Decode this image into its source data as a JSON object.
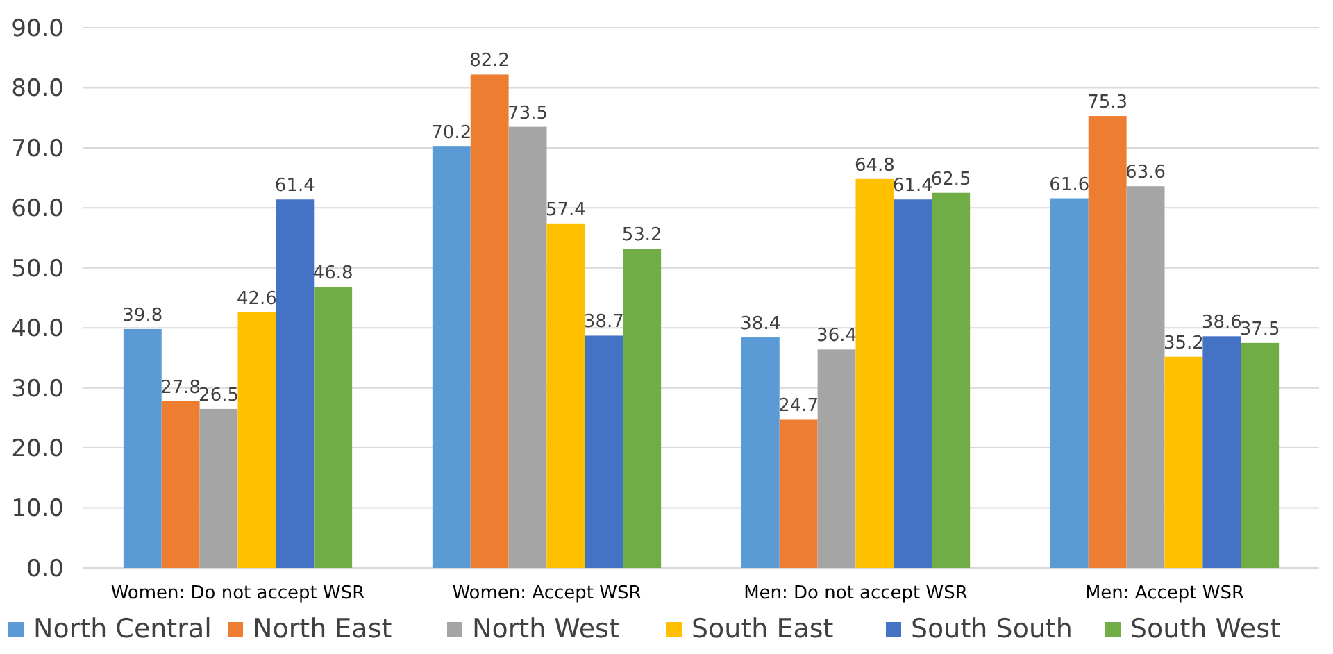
{
  "chart_data": {
    "type": "bar",
    "categories": [
      "Women: Do not accept WSR",
      "Women: Accept WSR",
      "Men: Do not accept WSR",
      "Men: Accept WSR"
    ],
    "series": [
      {
        "name": "North Central",
        "color": "#5b9bd5",
        "values": [
          39.8,
          70.2,
          38.4,
          61.6
        ]
      },
      {
        "name": "North East",
        "color": "#ed7d31",
        "values": [
          27.8,
          82.2,
          24.7,
          75.3
        ]
      },
      {
        "name": "North West",
        "color": "#a5a5a5",
        "values": [
          26.5,
          73.5,
          36.4,
          63.6
        ]
      },
      {
        "name": "South East",
        "color": "#ffc000",
        "values": [
          42.6,
          57.4,
          64.8,
          35.2
        ]
      },
      {
        "name": "South South",
        "color": "#4472c4",
        "values": [
          61.4,
          38.7,
          61.4,
          38.6
        ]
      },
      {
        "name": "South West",
        "color": "#70ad47",
        "values": [
          46.8,
          53.2,
          62.5,
          37.5
        ]
      }
    ],
    "ylim": [
      0,
      90
    ],
    "yticks": [
      {
        "value": 0,
        "label": "0.0"
      },
      {
        "value": 10,
        "label": "10.0"
      },
      {
        "value": 20,
        "label": "20.0"
      },
      {
        "value": 30,
        "label": "30.0"
      },
      {
        "value": 40,
        "label": "40.0"
      },
      {
        "value": 50,
        "label": "50.0"
      },
      {
        "value": 60,
        "label": "60.0"
      },
      {
        "value": 70,
        "label": "70.0"
      },
      {
        "value": 80,
        "label": "80.0"
      },
      {
        "value": 90,
        "label": "90.0"
      }
    ],
    "grid": "y",
    "legend": "bottom",
    "data_labels": true
  }
}
